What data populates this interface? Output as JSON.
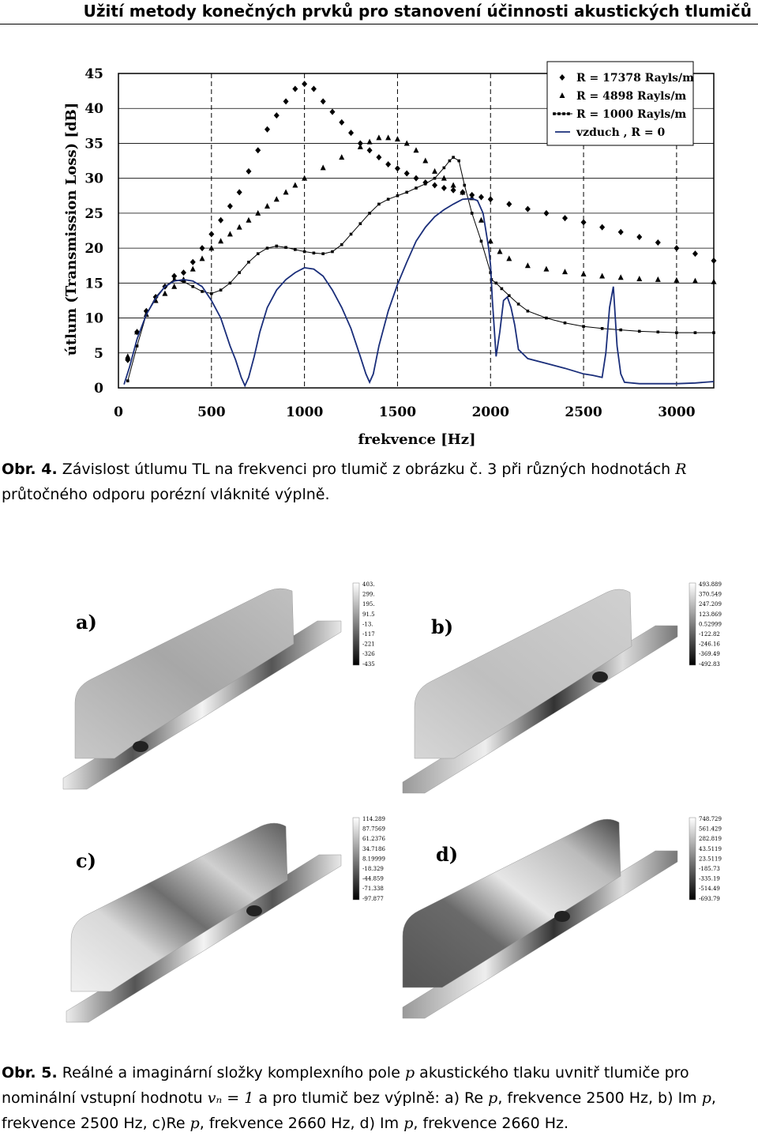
{
  "header": {
    "title": "Užití metody konečných prvků pro stanovení účinnosti akustických tlumičů"
  },
  "figure4": {
    "caption_label": "Obr. 4.",
    "caption_part1": "Závislost útlumu TL na frekvenci pro tlumič z obrázku č. 3 při různých hodnotách",
    "caption_var": "R",
    "caption_part2": "průtočného odporu porézní vláknité výplně."
  },
  "chart_data": {
    "type": "line",
    "title": "",
    "xlabel": "frekvence [Hz]",
    "ylabel": "útlum (Transmission Loss) [dB]",
    "xlim": [
      0,
      3200
    ],
    "ylim": [
      0,
      45
    ],
    "x_ticks": [
      "0",
      "500",
      "1000",
      "1500",
      "2000",
      "2500",
      "3000"
    ],
    "y_ticks": [
      "0",
      "5",
      "10",
      "15",
      "20",
      "25",
      "30",
      "35",
      "40",
      "45"
    ],
    "grid": true,
    "legend_position": "top-right",
    "series": [
      {
        "name": "R  =  17378 Rayls/m",
        "marker": "diamond",
        "color": "#000000",
        "x": [
          50,
          100,
          150,
          200,
          250,
          300,
          350,
          400,
          450,
          500,
          550,
          600,
          650,
          700,
          750,
          800,
          850,
          900,
          950,
          1000,
          1050,
          1100,
          1150,
          1200,
          1250,
          1300,
          1350,
          1400,
          1450,
          1500,
          1550,
          1600,
          1650,
          1700,
          1750,
          1800,
          1850,
          1900,
          1950,
          2000,
          2100,
          2200,
          2300,
          2400,
          2500,
          2600,
          2700,
          2800,
          2900,
          3000,
          3100,
          3200
        ],
        "y": [
          4,
          8,
          11,
          13,
          14.5,
          16,
          16.5,
          18,
          20,
          22,
          24,
          26,
          28,
          31,
          34,
          37,
          39,
          41,
          42.8,
          43.5,
          42.8,
          41,
          39.5,
          38,
          36.5,
          35,
          34,
          33,
          32,
          31.4,
          30.7,
          30,
          29.4,
          29,
          28.6,
          28.3,
          28,
          27.6,
          27.3,
          27,
          26.3,
          25.6,
          25,
          24.3,
          23.7,
          23,
          22.3,
          21.6,
          20.8,
          20,
          19.2,
          18.2
        ]
      },
      {
        "name": "R  =    4898 Rayls/m",
        "marker": "triangle",
        "color": "#000000",
        "x": [
          50,
          100,
          150,
          200,
          250,
          300,
          350,
          400,
          450,
          500,
          550,
          600,
          650,
          700,
          750,
          800,
          850,
          900,
          950,
          1000,
          1100,
          1200,
          1300,
          1350,
          1400,
          1450,
          1500,
          1550,
          1600,
          1650,
          1700,
          1750,
          1800,
          1850,
          1900,
          1950,
          2000,
          2050,
          2100,
          2200,
          2300,
          2400,
          2500,
          2600,
          2700,
          2800,
          2900,
          3000,
          3100,
          3200
        ],
        "y": [
          4.5,
          8,
          10.5,
          12.5,
          13.5,
          14.5,
          15.5,
          17,
          18.5,
          20,
          21,
          22,
          23,
          24,
          25,
          26,
          27,
          28,
          29,
          30,
          31.5,
          33,
          34.5,
          35.2,
          35.8,
          35.8,
          35.6,
          35,
          34,
          32.5,
          31,
          30,
          29,
          28,
          27.2,
          24,
          21,
          19.5,
          18.5,
          17.5,
          17,
          16.6,
          16.3,
          16,
          15.8,
          15.6,
          15.5,
          15.4,
          15.3,
          15.2
        ]
      },
      {
        "name": "R  =    1000 Rayls/m",
        "marker": "square",
        "color": "#000000",
        "x": [
          50,
          100,
          150,
          200,
          250,
          300,
          350,
          400,
          450,
          500,
          550,
          600,
          650,
          700,
          750,
          800,
          850,
          900,
          950,
          1000,
          1050,
          1100,
          1150,
          1200,
          1250,
          1300,
          1350,
          1400,
          1450,
          1500,
          1550,
          1600,
          1650,
          1700,
          1750,
          1780,
          1800,
          1830,
          1860,
          1900,
          1950,
          2000,
          2005,
          2030,
          2060,
          2100,
          2150,
          2200,
          2300,
          2400,
          2500,
          2600,
          2700,
          2800,
          2900,
          3000,
          3100,
          3200
        ],
        "y": [
          1,
          6,
          10.5,
          13,
          14.5,
          15.5,
          15.2,
          14.5,
          13.8,
          13.5,
          14,
          15,
          16.5,
          18,
          19.2,
          20,
          20.3,
          20.1,
          19.8,
          19.5,
          19.3,
          19.2,
          19.5,
          20.5,
          22,
          23.5,
          25,
          26.3,
          27,
          27.5,
          28,
          28.6,
          29.2,
          30,
          31.5,
          32.5,
          33,
          32.5,
          29,
          25,
          21,
          16.5,
          15.5,
          15,
          14.2,
          13.2,
          12,
          11,
          10,
          9.3,
          8.8,
          8.5,
          8.3,
          8.1,
          8,
          7.9,
          7.9,
          7.9
        ]
      },
      {
        "name": "vzduch ,   R = 0",
        "marker": "none",
        "color": "#1a2e7a",
        "x": [
          30,
          60,
          100,
          150,
          200,
          250,
          300,
          350,
          400,
          450,
          500,
          550,
          600,
          630,
          660,
          680,
          700,
          730,
          760,
          800,
          850,
          900,
          950,
          1000,
          1050,
          1100,
          1150,
          1200,
          1250,
          1300,
          1330,
          1350,
          1370,
          1400,
          1450,
          1500,
          1550,
          1600,
          1650,
          1700,
          1750,
          1800,
          1850,
          1900,
          1930,
          1960,
          1990,
          2000,
          2010,
          2030,
          2050,
          2070,
          2090,
          2110,
          2130,
          2150,
          2200,
          2300,
          2400,
          2500,
          2550,
          2600,
          2620,
          2640,
          2660,
          2680,
          2700,
          2720,
          2800,
          2900,
          3000,
          3100,
          3200
        ],
        "y": [
          0.5,
          3,
          7,
          10.5,
          12.8,
          14.5,
          15.3,
          15.5,
          15.3,
          14.5,
          12.5,
          10,
          6,
          4,
          1.5,
          0.3,
          1.5,
          4.5,
          8,
          11.5,
          14,
          15.5,
          16.5,
          17.2,
          17,
          16,
          14,
          11.5,
          8.5,
          4.5,
          2,
          0.8,
          2,
          6,
          11,
          14.8,
          18,
          21,
          23,
          24.5,
          25.5,
          26.3,
          27,
          27.1,
          26.8,
          25,
          20,
          17.5,
          12.5,
          4.5,
          8,
          12.5,
          13,
          11.5,
          9,
          5.5,
          4.2,
          3.5,
          2.8,
          2,
          1.8,
          1.5,
          5,
          11.5,
          14.5,
          6,
          2,
          0.8,
          0.6,
          0.6,
          0.6,
          0.7,
          0.9
        ]
      }
    ]
  },
  "contours": {
    "panels": [
      {
        "label": "a)",
        "scale": [
          "403.",
          "299.",
          "195.",
          "91.5",
          "-13.",
          "-117",
          "-221",
          "-326",
          "-435"
        ]
      },
      {
        "label": "b)",
        "scale": [
          "493.889",
          "370.549",
          "247.209",
          "123.869",
          "0.52999",
          "-122.82",
          "-246.16",
          "-369.49",
          "-492.83"
        ]
      },
      {
        "label": "c)",
        "scale": [
          "114.289",
          "87.7569",
          "61.2376",
          "34.7186",
          "8.19999",
          "-18.329",
          "-44.859",
          "-71.338",
          "-97.877"
        ]
      },
      {
        "label": "d)",
        "scale": [
          "748.729",
          "561.429",
          "282.819",
          "43.5119",
          "23.5119",
          "-185.73",
          "-335.19",
          "-514.49",
          "-693.79"
        ]
      }
    ]
  },
  "figure5": {
    "caption_label": "Obr. 5.",
    "t1": "Reálné a imaginární složky komplexního pole",
    "p": "p",
    "t2": "akustického tlaku uvnitř tlumiče pro nominální vstupní hodnotu",
    "vn": "vₙ = 1",
    "t3": "a pro tlumič bez výplně: a) Re",
    "t4": ", frekvence 2500 Hz, b) Im",
    "t5": ", frekvence 2500 Hz, c)Re",
    "t6": ", frekvence 2660 Hz, d) Im",
    "t7": ", frekvence 2660 Hz."
  }
}
